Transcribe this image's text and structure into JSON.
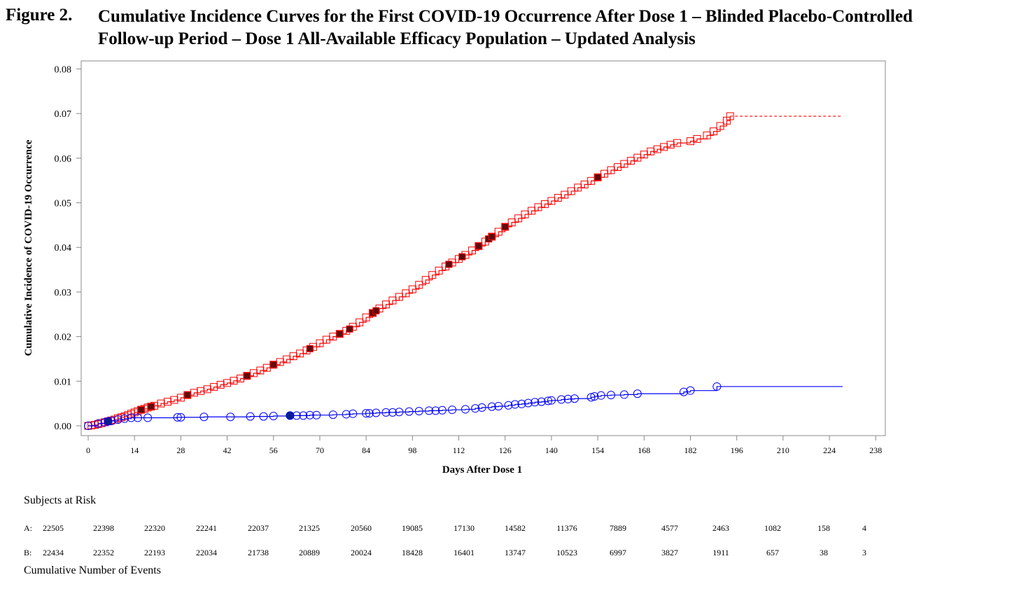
{
  "figure": {
    "label": "Figure 2.",
    "title_line1": "Cumulative Incidence Curves for the First COVID-19 Occurrence After Dose 1 – Blinded Placebo-Controlled",
    "title_line2": "Follow-up Period – Dose 1 All-Available Efficacy Population – Updated Analysis"
  },
  "chart_data": {
    "type": "line",
    "xlabel": "Days After Dose 1",
    "ylabel": "Cumulative Incidence of COVID-19 Occurrence",
    "xlim": [
      0,
      238
    ],
    "ylim": [
      0,
      0.08
    ],
    "x_ticks": [
      0,
      14,
      28,
      42,
      56,
      70,
      84,
      98,
      112,
      126,
      140,
      154,
      168,
      182,
      196,
      210,
      224,
      238
    ],
    "y_ticks": [
      "0.00",
      "0.01",
      "0.02",
      "0.03",
      "0.04",
      "0.05",
      "0.06",
      "0.07",
      "0.08"
    ],
    "grid": false,
    "series": [
      {
        "color": "#ff0000",
        "marker": "square",
        "end_x": 194,
        "censor_line_to": 228,
        "points": [
          [
            0,
            0
          ],
          [
            1,
            0.0001
          ],
          [
            2,
            0.0002
          ],
          [
            3,
            0.0004
          ],
          [
            4,
            0.0006
          ],
          [
            5,
            0.0008
          ],
          [
            6,
            0.001
          ],
          [
            7,
            0.0012
          ],
          [
            8,
            0.0014
          ],
          [
            9,
            0.0017
          ],
          [
            10,
            0.0019
          ],
          [
            11,
            0.0021
          ],
          [
            12,
            0.0024
          ],
          [
            13,
            0.0027
          ],
          [
            14,
            0.003
          ],
          [
            15,
            0.0033
          ],
          [
            16,
            0.0036
          ],
          [
            17,
            0.0038
          ],
          [
            18,
            0.0041
          ],
          [
            19,
            0.0043
          ],
          [
            20,
            0.0045
          ],
          [
            22,
            0.005
          ],
          [
            24,
            0.0054
          ],
          [
            26,
            0.0058
          ],
          [
            28,
            0.0063
          ],
          [
            30,
            0.0069
          ],
          [
            32,
            0.0074
          ],
          [
            34,
            0.0078
          ],
          [
            36,
            0.0082
          ],
          [
            38,
            0.0087
          ],
          [
            40,
            0.0092
          ],
          [
            42,
            0.0096
          ],
          [
            44,
            0.0101
          ],
          [
            46,
            0.0106
          ],
          [
            48,
            0.0112
          ],
          [
            50,
            0.0118
          ],
          [
            52,
            0.0124
          ],
          [
            54,
            0.013
          ],
          [
            56,
            0.0137
          ],
          [
            58,
            0.0143
          ],
          [
            60,
            0.0149
          ],
          [
            62,
            0.0156
          ],
          [
            64,
            0.0162
          ],
          [
            66,
            0.0169
          ],
          [
            68,
            0.0177
          ],
          [
            70,
            0.0185
          ],
          [
            72,
            0.0193
          ],
          [
            74,
            0.02
          ],
          [
            76,
            0.0206
          ],
          [
            78,
            0.0213
          ],
          [
            80,
            0.0222
          ],
          [
            82,
            0.0232
          ],
          [
            84,
            0.0243
          ],
          [
            86,
            0.0253
          ],
          [
            88,
            0.0263
          ],
          [
            90,
            0.0272
          ],
          [
            92,
            0.0281
          ],
          [
            94,
            0.0289
          ],
          [
            96,
            0.0297
          ],
          [
            98,
            0.0306
          ],
          [
            100,
            0.0316
          ],
          [
            102,
            0.0327
          ],
          [
            104,
            0.0338
          ],
          [
            106,
            0.0348
          ],
          [
            108,
            0.0357
          ],
          [
            110,
            0.0366
          ],
          [
            112,
            0.0374
          ],
          [
            114,
            0.0383
          ],
          [
            116,
            0.0393
          ],
          [
            118,
            0.0403
          ],
          [
            120,
            0.0413
          ],
          [
            122,
            0.0424
          ],
          [
            124,
            0.0435
          ],
          [
            126,
            0.0446
          ],
          [
            128,
            0.0456
          ],
          [
            130,
            0.0465
          ],
          [
            132,
            0.0474
          ],
          [
            134,
            0.0482
          ],
          [
            136,
            0.049
          ],
          [
            138,
            0.0497
          ],
          [
            140,
            0.0504
          ],
          [
            142,
            0.0511
          ],
          [
            144,
            0.0518
          ],
          [
            146,
            0.0526
          ],
          [
            148,
            0.0534
          ],
          [
            150,
            0.0541
          ],
          [
            152,
            0.0549
          ],
          [
            154,
            0.0557
          ],
          [
            156,
            0.0565
          ],
          [
            158,
            0.0573
          ],
          [
            160,
            0.058
          ],
          [
            162,
            0.0587
          ],
          [
            164,
            0.0594
          ],
          [
            166,
            0.0601
          ],
          [
            168,
            0.0608
          ],
          [
            170,
            0.0615
          ],
          [
            172,
            0.062
          ],
          [
            174,
            0.0625
          ],
          [
            176,
            0.063
          ],
          [
            178,
            0.0634
          ],
          [
            182,
            0.0638
          ],
          [
            184,
            0.0643
          ],
          [
            187,
            0.0651
          ],
          [
            189,
            0.066
          ],
          [
            191,
            0.0672
          ],
          [
            193,
            0.0684
          ],
          [
            194,
            0.0694
          ]
        ],
        "filled_points": [
          [
            6,
            0.001
          ],
          [
            16,
            0.0036
          ],
          [
            19,
            0.0043
          ],
          [
            30,
            0.0069
          ],
          [
            48,
            0.0112
          ],
          [
            56,
            0.0137
          ],
          [
            67,
            0.0173
          ],
          [
            76,
            0.0206
          ],
          [
            79,
            0.0217
          ],
          [
            86,
            0.0253
          ],
          [
            87,
            0.0258
          ],
          [
            109,
            0.0362
          ],
          [
            113,
            0.0379
          ],
          [
            118,
            0.0403
          ],
          [
            121,
            0.0419
          ],
          [
            122,
            0.0424
          ],
          [
            126,
            0.0446
          ],
          [
            154,
            0.0557
          ]
        ]
      },
      {
        "color": "#0000ff",
        "marker": "circle",
        "end_x": 228,
        "points": [
          [
            0,
            0
          ],
          [
            3,
            0.0005
          ],
          [
            5,
            0.0008
          ],
          [
            7,
            0.0011
          ],
          [
            9,
            0.0014
          ],
          [
            11,
            0.0016
          ],
          [
            13,
            0.0018
          ],
          [
            15,
            0.0018
          ],
          [
            18,
            0.0018
          ],
          [
            27,
            0.0019
          ],
          [
            28,
            0.0019
          ],
          [
            35,
            0.002
          ],
          [
            43,
            0.002
          ],
          [
            49,
            0.0021
          ],
          [
            53,
            0.0021
          ],
          [
            56,
            0.0022
          ],
          [
            61,
            0.0023
          ],
          [
            63,
            0.0023
          ],
          [
            65,
            0.0023
          ],
          [
            67,
            0.0024
          ],
          [
            69,
            0.0024
          ],
          [
            74,
            0.0025
          ],
          [
            78,
            0.0026
          ],
          [
            80,
            0.0027
          ],
          [
            84,
            0.0028
          ],
          [
            85,
            0.0028
          ],
          [
            87,
            0.0029
          ],
          [
            90,
            0.003
          ],
          [
            92,
            0.003
          ],
          [
            94,
            0.0031
          ],
          [
            97,
            0.0032
          ],
          [
            100,
            0.0033
          ],
          [
            103,
            0.0034
          ],
          [
            105,
            0.0034
          ],
          [
            107,
            0.0035
          ],
          [
            110,
            0.0036
          ],
          [
            114,
            0.0037
          ],
          [
            117,
            0.0039
          ],
          [
            119,
            0.0041
          ],
          [
            122,
            0.0043
          ],
          [
            124,
            0.0044
          ],
          [
            127,
            0.0046
          ],
          [
            129,
            0.0048
          ],
          [
            131,
            0.0049
          ],
          [
            133,
            0.0051
          ],
          [
            135,
            0.0053
          ],
          [
            137,
            0.0054
          ],
          [
            139,
            0.0056
          ],
          [
            140,
            0.0057
          ],
          [
            143,
            0.0059
          ],
          [
            145,
            0.006
          ],
          [
            147,
            0.0061
          ],
          [
            152,
            0.0064
          ],
          [
            153,
            0.0066
          ],
          [
            155,
            0.0068
          ],
          [
            158,
            0.0069
          ],
          [
            162,
            0.007
          ],
          [
            166,
            0.0072
          ],
          [
            180,
            0.0076
          ],
          [
            182,
            0.0079
          ],
          [
            190,
            0.0088
          ]
        ],
        "filled_points": [
          [
            6,
            0.001
          ],
          [
            61,
            0.0023
          ]
        ]
      }
    ]
  },
  "risk_table": {
    "header": "Subjects at Risk",
    "footer": "Cumulative Number of Events",
    "rows": [
      {
        "label": "A:",
        "values": [
          "22505",
          "22398",
          "22320",
          "22241",
          "22037",
          "21325",
          "20560",
          "19085",
          "17130",
          "14582",
          "11376",
          "7889",
          "4577",
          "2463",
          "1082",
          "158",
          "4"
        ]
      },
      {
        "label": "B:",
        "values": [
          "22434",
          "22352",
          "22193",
          "22034",
          "21738",
          "20889",
          "20024",
          "18428",
          "16401",
          "13747",
          "10523",
          "6997",
          "3827",
          "1911",
          "657",
          "38",
          "3"
        ]
      }
    ]
  }
}
